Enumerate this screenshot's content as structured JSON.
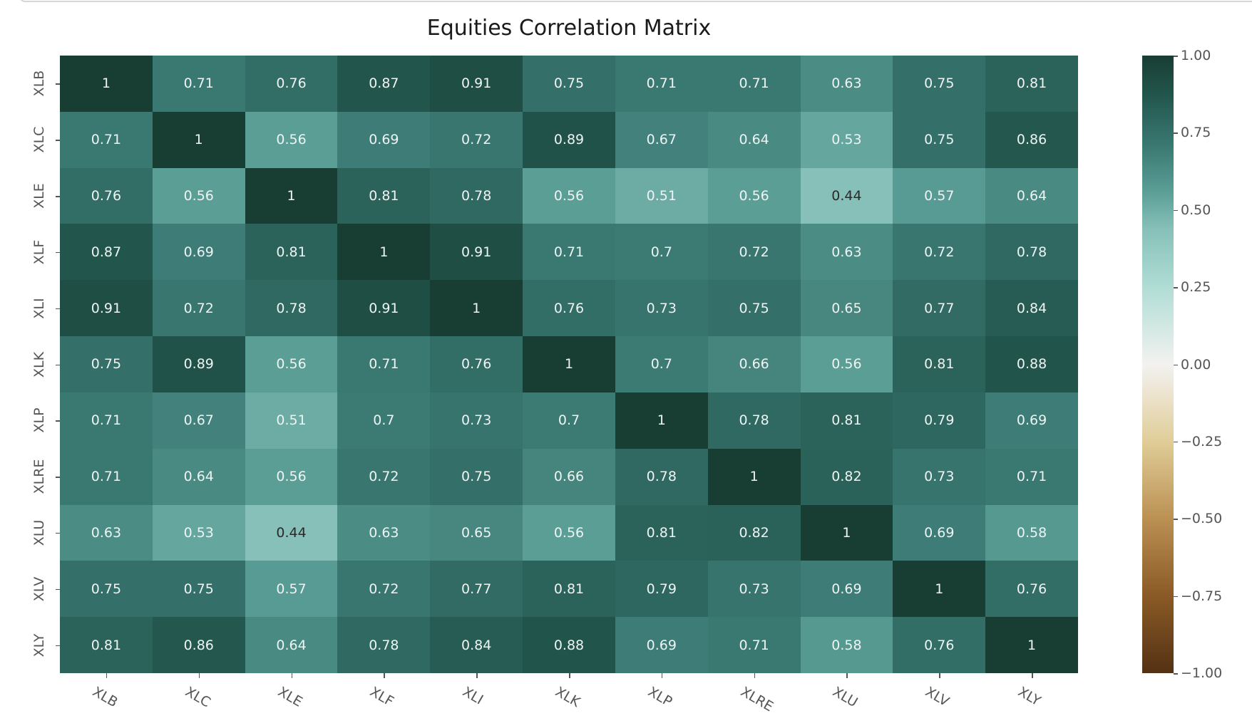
{
  "chart_data": {
    "type": "heatmap",
    "title": "Equities Correlation Matrix",
    "xlabel": "",
    "ylabel": "",
    "x_labels": [
      "XLB",
      "XLC",
      "XLE",
      "XLF",
      "XLI",
      "XLK",
      "XLP",
      "XLRE",
      "XLU",
      "XLV",
      "XLY"
    ],
    "y_labels": [
      "XLB",
      "XLC",
      "XLE",
      "XLF",
      "XLI",
      "XLK",
      "XLP",
      "XLRE",
      "XLU",
      "XLV",
      "XLY"
    ],
    "values": [
      [
        1,
        0.71,
        0.76,
        0.87,
        0.91,
        0.75,
        0.71,
        0.71,
        0.63,
        0.75,
        0.81
      ],
      [
        0.71,
        1,
        0.56,
        0.69,
        0.72,
        0.89,
        0.67,
        0.64,
        0.53,
        0.75,
        0.86
      ],
      [
        0.76,
        0.56,
        1,
        0.81,
        0.78,
        0.56,
        0.51,
        0.56,
        0.44,
        0.57,
        0.64
      ],
      [
        0.87,
        0.69,
        0.81,
        1,
        0.91,
        0.71,
        0.7,
        0.72,
        0.63,
        0.72,
        0.78
      ],
      [
        0.91,
        0.72,
        0.78,
        0.91,
        1,
        0.76,
        0.73,
        0.75,
        0.65,
        0.77,
        0.84
      ],
      [
        0.75,
        0.89,
        0.56,
        0.71,
        0.76,
        1,
        0.7,
        0.66,
        0.56,
        0.81,
        0.88
      ],
      [
        0.71,
        0.67,
        0.51,
        0.7,
        0.73,
        0.7,
        1,
        0.78,
        0.81,
        0.79,
        0.69
      ],
      [
        0.71,
        0.64,
        0.56,
        0.72,
        0.75,
        0.66,
        0.78,
        1,
        0.82,
        0.73,
        0.71
      ],
      [
        0.63,
        0.53,
        0.44,
        0.63,
        0.65,
        0.56,
        0.81,
        0.82,
        1,
        0.69,
        0.58
      ],
      [
        0.75,
        0.75,
        0.57,
        0.72,
        0.77,
        0.81,
        0.79,
        0.73,
        0.69,
        1,
        0.76
      ],
      [
        0.81,
        0.86,
        0.64,
        0.78,
        0.84,
        0.88,
        0.69,
        0.71,
        0.58,
        0.76,
        1
      ]
    ],
    "colorbar": {
      "colormap": "BrBG",
      "vmin": -1.0,
      "vmax": 1.0,
      "ticks": [
        "1.00",
        "0.75",
        "0.50",
        "0.25",
        "0.00",
        "−0.25",
        "−0.50",
        "−0.75",
        "−1.00"
      ],
      "tick_values": [
        1.0,
        0.75,
        0.5,
        0.25,
        0.0,
        -0.25,
        -0.5,
        -0.75,
        -1.0
      ]
    },
    "annotations": true,
    "grid": false,
    "legend_position": "right"
  },
  "colors": {
    "stops": [
      [
        -1.0,
        "#543114"
      ],
      [
        -0.75,
        "#8a5a26"
      ],
      [
        -0.5,
        "#bb9053"
      ],
      [
        -0.25,
        "#e0cd98"
      ],
      [
        0.0,
        "#f3f2f0"
      ],
      [
        0.25,
        "#b0ddd5"
      ],
      [
        0.44,
        "#86c0b8"
      ],
      [
        0.56,
        "#5a9e96"
      ],
      [
        0.71,
        "#3a7872"
      ],
      [
        0.87,
        "#22564d"
      ],
      [
        1.0,
        "#183d33"
      ]
    ]
  }
}
